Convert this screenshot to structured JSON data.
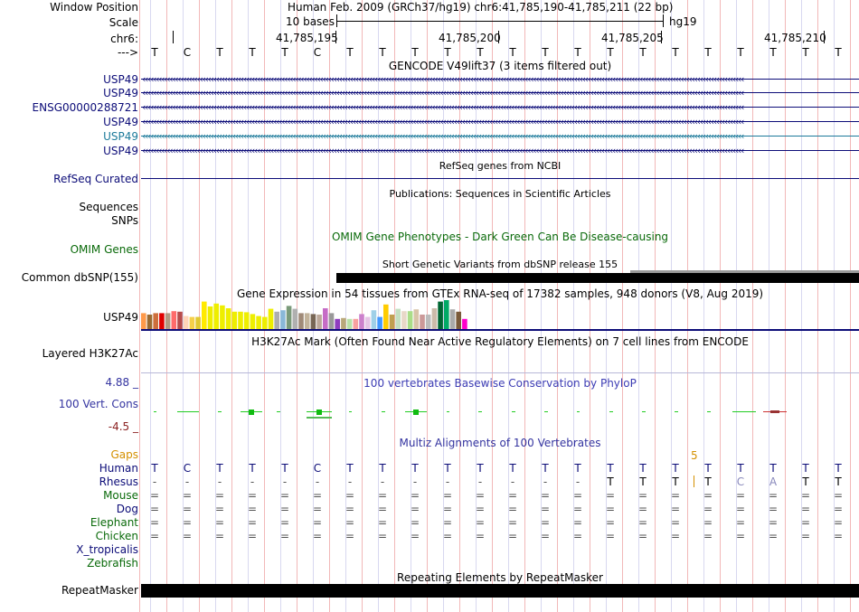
{
  "header": {
    "window_position_label": "Window Position",
    "scale_label": "Scale",
    "chrom_label": "chr6:",
    "strand_label": "--->",
    "assembly_text": "Human Feb. 2009 (GRCh37/hg19)   chr6:41,785,190-41,785,211 (22 bp)",
    "scale_text": "10 bases",
    "db_label": "hg19",
    "positions": [
      "41,785,195",
      "41,785,200",
      "41,785,205",
      "41,785,210"
    ]
  },
  "sequence": [
    "T",
    "C",
    "T",
    "T",
    "T",
    "C",
    "T",
    "T",
    "T",
    "T",
    "T",
    "T",
    "T",
    "T",
    "T",
    "T",
    "T",
    "T",
    "T",
    "T",
    "T",
    "T"
  ],
  "gencode": {
    "title": "GENCODE V49lift37 (3 items filtered out)",
    "items": [
      "USP49",
      "USP49",
      "ENSG00000288721",
      "USP49",
      "USP49",
      "USP49"
    ],
    "colors": [
      "#0c0c78",
      "#0c0c78",
      "#0c0c78",
      "#0c0c78",
      "#1c7a9a",
      "#0c0c78"
    ]
  },
  "refseq": {
    "label": "RefSeq Curated",
    "title": "RefSeq genes from NCBI"
  },
  "publications": {
    "title": "Publications: Sequences in Scientific Articles",
    "label1": "Sequences",
    "label2": "SNPs"
  },
  "omim": {
    "label": "OMIM Genes",
    "title": "OMIM Gene Phenotypes - Dark Green Can Be Disease-causing"
  },
  "dbsnp": {
    "label": "Common dbSNP(155)",
    "title": "Short Genetic Variants from dbSNP release 155"
  },
  "gtex": {
    "label": "USP49",
    "title": "Gene Expression in 54 tissues from GTEx RNA-seq of 17382 samples, 948 donors (V8, Aug 2019)",
    "values": [
      0.55,
      0.5,
      0.55,
      0.55,
      0.55,
      0.62,
      0.6,
      0.45,
      0.42,
      0.42,
      0.95,
      0.78,
      0.88,
      0.82,
      0.72,
      0.6,
      0.6,
      0.58,
      0.52,
      0.45,
      0.42,
      0.7,
      0.6,
      0.65,
      0.8,
      0.7,
      0.55,
      0.55,
      0.52,
      0.5,
      0.72,
      0.55,
      0.35,
      0.38,
      0.35,
      0.35,
      0.52,
      0.42,
      0.65,
      0.42,
      0.85,
      0.5,
      0.7,
      0.62,
      0.62,
      0.68,
      0.5,
      0.5,
      0.72,
      0.95,
      1.0,
      0.68,
      0.6,
      0.35
    ],
    "colors": [
      "#ff9a4a",
      "#9b6a31",
      "#cd6e3c",
      "#e00000",
      "#b19a82",
      "#ff6b6b",
      "#b84c4c",
      "#ffd5b8",
      "#f5d04a",
      "#e0c830",
      "#ffea00",
      "#eeee00",
      "#eeee00",
      "#eeee00",
      "#eeee00",
      "#eeee00",
      "#eeee00",
      "#eeee00",
      "#eeee00",
      "#eeee00",
      "#eeee00",
      "#eeee00",
      "#adadad",
      "#8ab8d8",
      "#7a9a7a",
      "#b0b0b0",
      "#a08a78",
      "#c2b39b",
      "#776655",
      "#bca89a",
      "#c66cc6",
      "#999999",
      "#8e3cbf",
      "#b9a87a",
      "#b9e1a8",
      "#f8a0a0",
      "#cc80cc",
      "#e5c4e5",
      "#9fd0e8",
      "#4499ff",
      "#ffcc00",
      "#c0a050",
      "#c4e0c0",
      "#e8d8c8",
      "#aadd88",
      "#d8c4a8",
      "#cc9999",
      "#bbbbbb",
      "#ccbbaa",
      "#006633",
      "#00aa66",
      "#aaaaaa",
      "#7a5a3a",
      "#ff00cc"
    ]
  },
  "h3k27ac": {
    "label": "Layered H3K27Ac",
    "title": "H3K27Ac Mark (Often Found Near Active Regulatory Elements) on 7 cell lines from ENCODE"
  },
  "phylop": {
    "label": "100 Vert. Cons",
    "title": "100 vertebrates Basewise Conservation by PhyloP",
    "max": "4.88 _",
    "min": "-4.5 _"
  },
  "multiz": {
    "title": "Multiz Alignments of 100 Vertebrates",
    "gaps_label": "Gaps",
    "gap_count": "5",
    "species": [
      "Human",
      "Rhesus",
      "Mouse",
      "Dog",
      "Elephant",
      "Chicken",
      "X_tropicalis",
      "Zebrafish"
    ],
    "species_colors": [
      "#0c0c78",
      "#0c0c78",
      "#0a6a0a",
      "#0c0c78",
      "#0a6a0a",
      "#0a6a0a",
      "#0c0c78",
      "#0a6a0a"
    ],
    "human": [
      "T",
      "C",
      "T",
      "T",
      "T",
      "C",
      "T",
      "T",
      "T",
      "T",
      "T",
      "T",
      "T",
      "T",
      "T",
      "T",
      "T",
      "T",
      "T",
      "T",
      "T",
      "T"
    ],
    "rhesus": [
      "-",
      "-",
      "-",
      "-",
      "-",
      "-",
      "-",
      "-",
      "-",
      "-",
      "-",
      "-",
      "-",
      "-",
      "T",
      "T",
      "T",
      "T",
      "C",
      "A",
      "T",
      "T"
    ],
    "eq": "="
  },
  "repeatmasker": {
    "label": "RepeatMasker",
    "title": "Repeating Elements by RepeatMasker"
  },
  "colors": {
    "navy": "#0c0c78",
    "green": "#0a6a0a",
    "gaps": "#d49000",
    "phylop_blue": "#3434a0",
    "phylop_red": "#8a2020",
    "cons_blue": "#3c3cb4",
    "grid": "#d8d8f0",
    "grid_red": "#f2b8b8"
  }
}
